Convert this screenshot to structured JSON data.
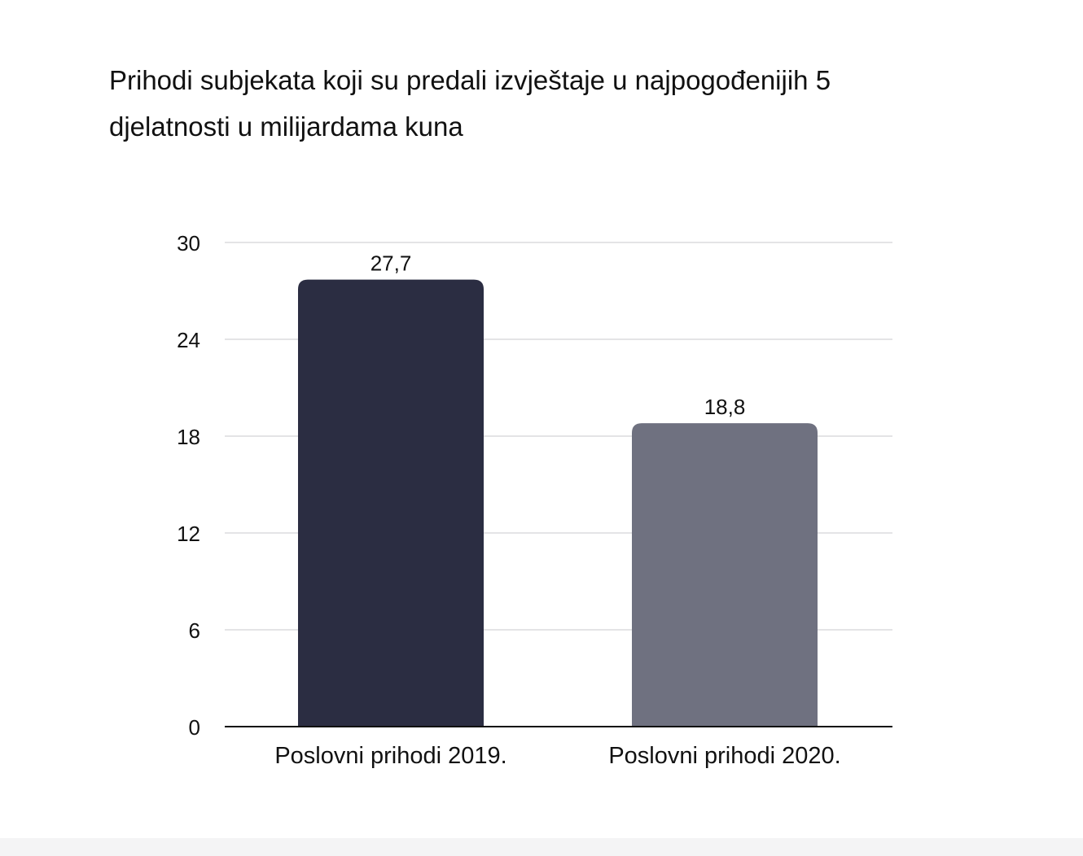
{
  "chart_data": {
    "type": "bar",
    "title": "Prihodi subjekata koji su predali izvještaje u najpogođenijih 5 djelatnosti u milijardama kuna",
    "xlabel": "",
    "ylabel": "",
    "categories": [
      "Poslovni prihodi 2019.",
      "Poslovni prihodi 2020."
    ],
    "values": [
      27.7,
      18.8
    ],
    "data_labels": [
      "27,7",
      "18,8"
    ],
    "bar_colors": [
      "#2b2d42",
      "#6f7180"
    ],
    "ylim": [
      0,
      30
    ],
    "yticks": [
      0,
      6,
      12,
      18,
      24,
      30
    ],
    "ytick_labels": [
      "0",
      "6",
      "12",
      "18",
      "24",
      "30"
    ],
    "grid": true,
    "legend": "none"
  }
}
